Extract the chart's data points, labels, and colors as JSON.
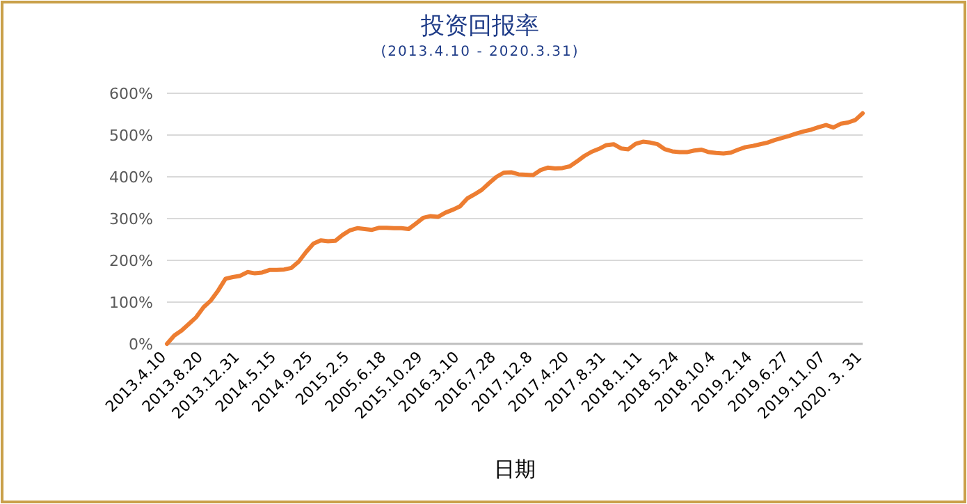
{
  "chart_data": {
    "type": "line",
    "title": "投资回报率",
    "subtitle": "(2013.4.10 - 2020.3.31)",
    "xlabel": "日期",
    "categories": [
      "2013.4.10",
      null,
      null,
      null,
      null,
      "2013.8.20",
      null,
      null,
      null,
      null,
      "2013.12.31",
      null,
      null,
      null,
      null,
      "2014.5.15",
      null,
      null,
      null,
      null,
      "2014.9.25",
      null,
      null,
      null,
      null,
      "2015.2.5",
      null,
      null,
      null,
      null,
      "2005.6.18",
      null,
      null,
      null,
      null,
      "2015.10.29",
      null,
      null,
      null,
      null,
      "2016.3.10",
      null,
      null,
      null,
      null,
      "2016.7.28",
      null,
      null,
      null,
      null,
      "2017.12.8",
      null,
      null,
      null,
      null,
      "2017.4.20",
      null,
      null,
      null,
      null,
      "2017.8.31",
      null,
      null,
      null,
      null,
      "2018.1.11",
      null,
      null,
      null,
      null,
      "2018.5.24",
      null,
      null,
      null,
      null,
      "2018.10.4",
      null,
      null,
      null,
      null,
      "2019.2.14",
      null,
      null,
      null,
      null,
      "2019.6.27",
      null,
      null,
      null,
      null,
      "2019.11.07",
      null,
      null,
      null,
      null,
      "2020. 3. 31"
    ],
    "series": [
      {
        "color": "#ed7d31",
        "values": [
          0,
          20,
          32,
          48,
          64,
          88,
          104,
          128,
          156,
          160,
          163,
          172,
          169,
          171,
          177,
          177,
          178,
          182,
          197,
          220,
          240,
          248,
          246,
          247,
          261,
          272,
          277,
          275,
          273,
          278,
          278,
          277,
          277,
          275,
          288,
          302,
          306,
          304,
          314,
          321,
          329,
          348,
          358,
          369,
          385,
          400,
          410,
          411,
          406,
          405,
          404,
          416,
          422,
          420,
          421,
          425,
          437,
          450,
          460,
          467,
          476,
          478,
          468,
          466,
          479,
          484,
          482,
          478,
          466,
          461,
          459,
          459,
          463,
          465,
          459,
          457,
          456,
          458,
          465,
          471,
          474,
          478,
          482,
          488,
          493,
          498,
          504,
          509,
          513,
          519,
          524,
          518,
          527,
          530,
          536,
          552
        ]
      }
    ],
    "ylim": [
      0,
      600
    ],
    "yticks": [
      {
        "value": 0,
        "label": "0%"
      },
      {
        "value": 100,
        "label": "100%"
      },
      {
        "value": 200,
        "label": "200%"
      },
      {
        "value": 300,
        "label": "300%"
      },
      {
        "value": 400,
        "label": "400%"
      },
      {
        "value": 500,
        "label": "500%"
      },
      {
        "value": 600,
        "label": "600%"
      }
    ],
    "grid": "y"
  }
}
